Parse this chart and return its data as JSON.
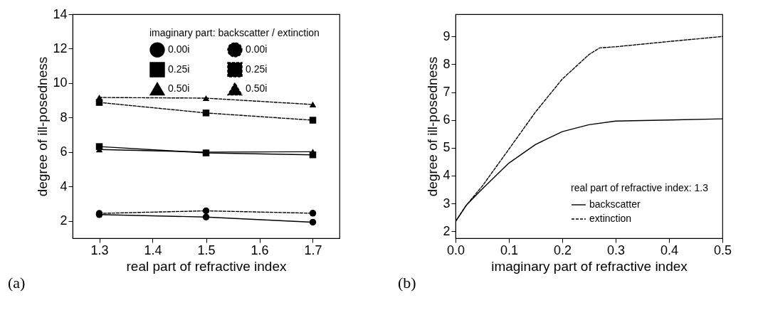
{
  "chart_data": [
    {
      "type": "line",
      "xlabel": "real part of refractive index",
      "ylabel": "degree of ill-posedness",
      "legend_title": "imaginary part: backscatter  /  extinction",
      "annotations": [
        "(a)"
      ],
      "x": [
        1.3,
        1.5,
        1.7
      ],
      "xlim": [
        1.25,
        1.75
      ],
      "ylim": [
        1,
        14
      ],
      "xticks": [
        1.3,
        1.4,
        1.5,
        1.6,
        1.7
      ],
      "yticks": [
        2,
        4,
        6,
        8,
        10,
        12,
        14
      ],
      "grid": false,
      "legend": "top right",
      "series": [
        {
          "name": "0.00i",
          "color": "#000000",
          "marker": "circle",
          "line_style": "solid",
          "values": [
            2.37,
            2.23,
            1.93
          ]
        },
        {
          "name": "0.00i",
          "color": "#000000",
          "marker": "circle",
          "line_style": "dashed",
          "values": [
            2.44,
            2.59,
            2.45
          ]
        },
        {
          "name": "0.25i",
          "color": "#000000",
          "marker": "square",
          "line_style": "solid",
          "values": [
            6.32,
            5.95,
            5.84
          ]
        },
        {
          "name": "0.25i",
          "color": "#000000",
          "marker": "square",
          "line_style": "dashed",
          "values": [
            8.88,
            8.27,
            7.85
          ]
        },
        {
          "name": "0.50i",
          "color": "#000000",
          "marker": "triangle",
          "line_style": "solid",
          "values": [
            6.15,
            6.0,
            6.02
          ]
        },
        {
          "name": "0.50i",
          "color": "#000000",
          "marker": "triangle",
          "line_style": "dashed",
          "values": [
            9.17,
            9.13,
            8.76
          ]
        }
      ]
    },
    {
      "type": "line",
      "xlabel": "imaginary part of refractive index",
      "ylabel": "degree of ill-posedness",
      "legend_title": "real part of refractive index: 1.3",
      "annotations": [
        "(b)"
      ],
      "xlim": [
        0,
        0.5
      ],
      "ylim": [
        1.75,
        9.8
      ],
      "xticks": [
        {
          "value": 0,
          "label": "0.0"
        },
        0.1,
        0.2,
        0.3,
        0.4,
        0.5
      ],
      "yticks": [
        2,
        3,
        4,
        5,
        6,
        7,
        8,
        9
      ],
      "grid": false,
      "legend": "bottom right",
      "marker": "none",
      "series": [
        {
          "name": "backscatter",
          "color": "#000000",
          "line_style": "solid",
          "x": [
            0,
            0.02,
            0.05,
            0.1,
            0.15,
            0.2,
            0.25,
            0.3,
            0.4,
            0.5
          ],
          "values": [
            2.35,
            2.93,
            3.52,
            4.45,
            5.12,
            5.58,
            5.83,
            5.96,
            6.0,
            6.04
          ]
        },
        {
          "name": "extinction",
          "color": "#000000",
          "line_style": "dashed",
          "x": [
            0,
            0.02,
            0.05,
            0.1,
            0.15,
            0.2,
            0.25,
            0.27,
            0.3,
            0.4,
            0.5
          ],
          "values": [
            2.35,
            2.93,
            3.62,
            4.95,
            6.29,
            7.47,
            8.35,
            8.59,
            8.63,
            8.82,
            9.0
          ]
        }
      ]
    }
  ]
}
